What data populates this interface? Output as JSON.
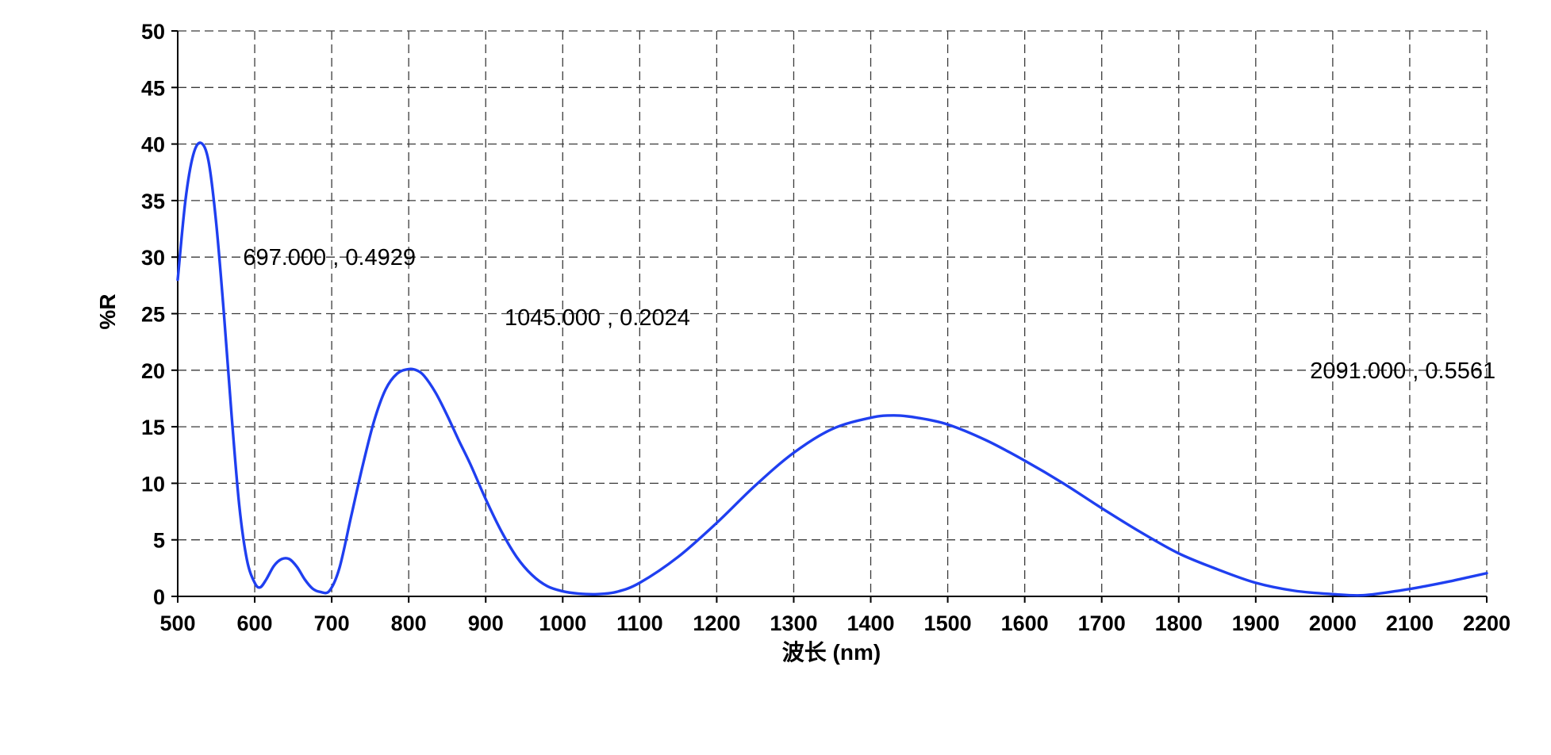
{
  "chart_data": {
    "type": "line",
    "title": "",
    "xlabel": "波长 (nm)",
    "ylabel": "%R",
    "xlim": [
      500,
      2200
    ],
    "ylim": [
      0,
      50
    ],
    "x_ticks": [
      500,
      600,
      700,
      800,
      900,
      1000,
      1100,
      1200,
      1300,
      1400,
      1500,
      1600,
      1700,
      1800,
      1900,
      2000,
      2100,
      2200
    ],
    "y_ticks": [
      0,
      5,
      10,
      15,
      20,
      25,
      30,
      35,
      40,
      45,
      50
    ],
    "grid": true,
    "series_color": "#1f3ff0",
    "series": [
      {
        "x": [
          500,
          510,
          520,
          530,
          540,
          550,
          560,
          570,
          580,
          590,
          600,
          607,
          615,
          625,
          635,
          645,
          655,
          665,
          675,
          685,
          697,
          710,
          725,
          740,
          755,
          770,
          785,
          800,
          810,
          820,
          835,
          850,
          865,
          880,
          900,
          920,
          940,
          960,
          980,
          1000,
          1020,
          1045,
          1070,
          1100,
          1150,
          1200,
          1250,
          1300,
          1350,
          1400,
          1430,
          1460,
          1500,
          1550,
          1600,
          1650,
          1700,
          1750,
          1800,
          1850,
          1900,
          1950,
          2000,
          2040,
          2091,
          2120,
          2150,
          2180,
          2200
        ],
        "y": [
          28,
          35,
          39,
          40.1,
          38.5,
          33,
          25,
          16,
          8,
          3.2,
          1.2,
          0.8,
          1.5,
          2.7,
          3.3,
          3.3,
          2.6,
          1.5,
          0.7,
          0.4,
          0.49,
          2.5,
          7,
          11.5,
          15.5,
          18.3,
          19.7,
          20.1,
          20,
          19.5,
          18,
          16,
          13.8,
          11.7,
          8.6,
          5.8,
          3.5,
          1.9,
          0.9,
          0.45,
          0.25,
          0.2,
          0.4,
          1.2,
          3.5,
          6.5,
          9.8,
          12.7,
          14.8,
          15.8,
          16,
          15.8,
          15.2,
          13.8,
          12,
          10,
          7.8,
          5.7,
          3.8,
          2.4,
          1.2,
          0.5,
          0.2,
          0.1,
          0.56,
          0.9,
          1.3,
          1.75,
          2.05
        ]
      }
    ],
    "annotations": [
      {
        "text": "697.000 , 0.4929",
        "x": 697,
        "y": 30
      },
      {
        "text": "1045.000 , 0.2024",
        "x": 1045,
        "y": 24.7
      },
      {
        "text": "2091.000 , 0.5561",
        "x": 2091,
        "y": 20
      }
    ]
  }
}
